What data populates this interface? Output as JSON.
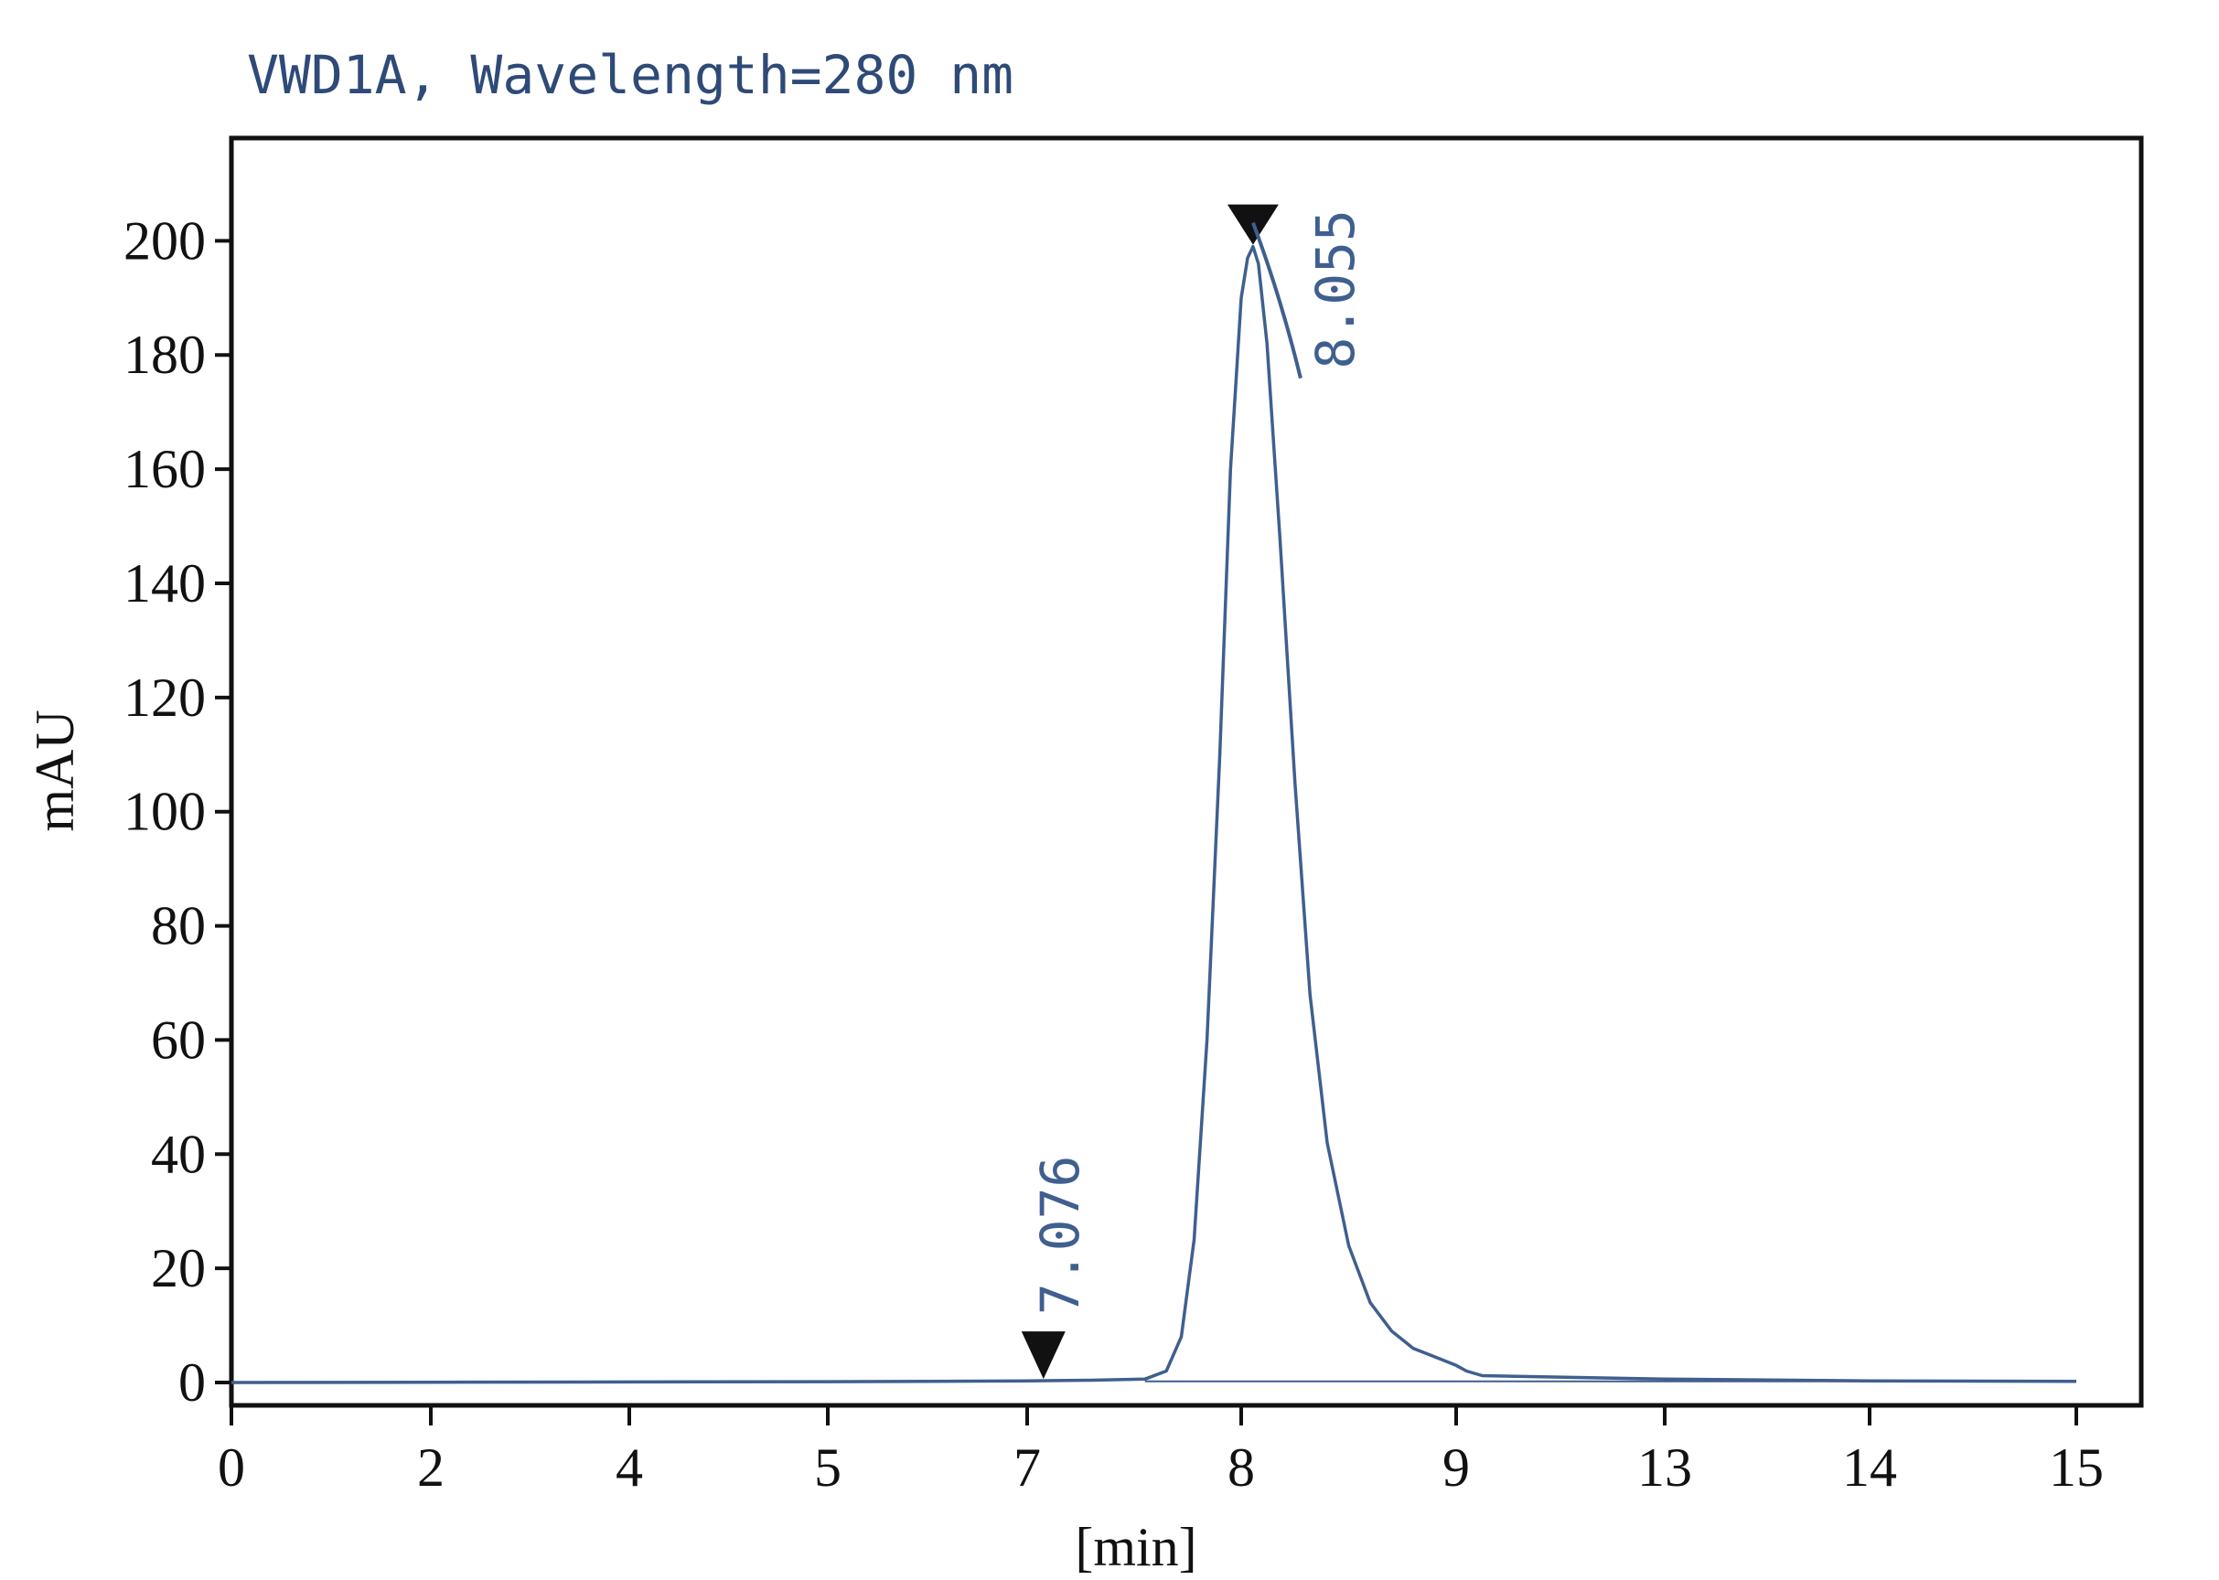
{
  "chart_data": {
    "type": "line",
    "title": "VWD1A, Wavelength=280 nm",
    "xlabel": "[min]",
    "ylabel": "mAU",
    "x_tick_labels": [
      "0",
      "2",
      "4",
      "5",
      "7",
      "8",
      "9",
      "13",
      "14",
      "15"
    ],
    "y_ticks": [
      0,
      20,
      40,
      60,
      80,
      100,
      120,
      140,
      160,
      180,
      200
    ],
    "y_tick_labels": [
      "0",
      "20",
      "40",
      "60",
      "80",
      "100",
      "120",
      "140",
      "160",
      "180",
      "200"
    ],
    "ylim": [
      -4,
      218
    ],
    "grid": false,
    "legend": "none",
    "line_color": "#3f5f8f",
    "series": [
      {
        "x": [
          0.0,
          2.0,
          4.0,
          5.0,
          6.0,
          7.0,
          7.3,
          7.55,
          7.65,
          7.72,
          7.78,
          7.84,
          7.9,
          7.95,
          8.0,
          8.03,
          8.055,
          8.08,
          8.12,
          8.18,
          8.25,
          8.32,
          8.4,
          8.5,
          8.6,
          8.7,
          8.8,
          8.9,
          9.0,
          9.2,
          9.5,
          13.0,
          14.0,
          15.0
        ],
        "y": [
          0.0,
          0.05,
          0.1,
          0.15,
          0.2,
          0.3,
          0.4,
          0.6,
          2.0,
          8.0,
          25.0,
          60.0,
          110.0,
          160.0,
          190.0,
          197.0,
          199.0,
          196.0,
          182.0,
          148.0,
          105.0,
          68.0,
          42.0,
          24.0,
          14.0,
          9.0,
          6.0,
          4.5,
          3.0,
          2.0,
          1.2,
          0.6,
          0.3,
          0.2
        ]
      }
    ],
    "peaks": [
      {
        "label": "7.076",
        "x": 7.076,
        "y": 0.3
      },
      {
        "label": "8.055",
        "x": 8.055,
        "y": 199.0
      }
    ]
  }
}
